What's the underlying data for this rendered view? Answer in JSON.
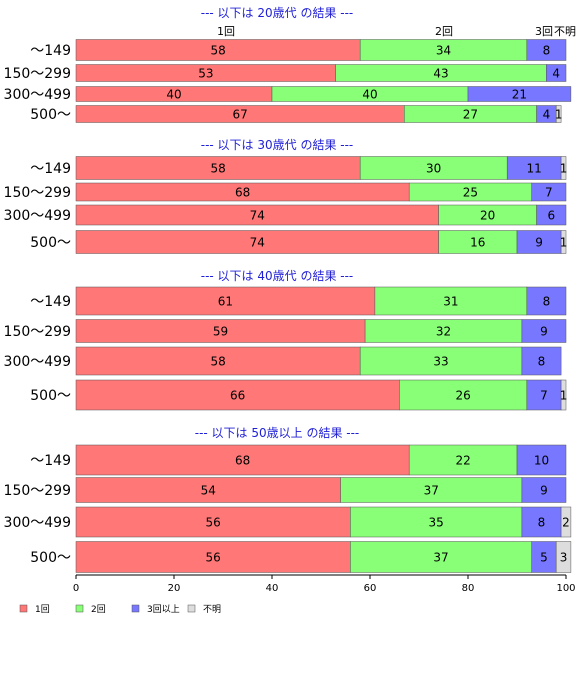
{
  "colors": {
    "one": "#ff7777",
    "two": "#88ff77",
    "three_plus": "#7777ff",
    "unknown": "#dddddd",
    "header": "#1f1fd6",
    "axis": "#000000"
  },
  "top_labels": [
    "1回",
    "2回",
    "3回",
    "不明"
  ],
  "chart_data": {
    "type": "bar",
    "orientation": "horizontal",
    "stacked": true,
    "xlim": [
      0,
      100
    ],
    "x_ticks": [
      0,
      20,
      40,
      60,
      80,
      100
    ],
    "legend": {
      "placement": "bottom-left",
      "entries": [
        "1回",
        "2回",
        "3回以上",
        "不明"
      ]
    },
    "groups": [
      {
        "header": "--- 以下は 20歳代 の結果 ---",
        "categories": [
          "～149",
          "150～299",
          "300～499",
          "500～"
        ],
        "series": [
          {
            "name": "1回",
            "values": [
              58,
              53,
              40,
              67
            ]
          },
          {
            "name": "2回",
            "values": [
              34,
              43,
              40,
              27
            ]
          },
          {
            "name": "3回以上",
            "values": [
              8,
              4,
              21,
              4
            ]
          },
          {
            "name": "不明",
            "values": [
              0,
              0,
              0,
              1
            ]
          }
        ]
      },
      {
        "header": "--- 以下は 30歳代 の結果 ---",
        "categories": [
          "～149",
          "150～299",
          "300～499",
          "500～"
        ],
        "series": [
          {
            "name": "1回",
            "values": [
              58,
              68,
              74,
              74
            ]
          },
          {
            "name": "2回",
            "values": [
              30,
              25,
              20,
              16
            ]
          },
          {
            "name": "3回以上",
            "values": [
              11,
              7,
              6,
              9
            ]
          },
          {
            "name": "不明",
            "values": [
              1,
              0,
              0,
              1
            ]
          }
        ]
      },
      {
        "header": "--- 以下は 40歳代 の結果 ---",
        "categories": [
          "～149",
          "150～299",
          "300～499",
          "500～"
        ],
        "series": [
          {
            "name": "1回",
            "values": [
              61,
              59,
              58,
              66
            ]
          },
          {
            "name": "2回",
            "values": [
              31,
              32,
              33,
              26
            ]
          },
          {
            "name": "3回以上",
            "values": [
              8,
              9,
              8,
              7
            ]
          },
          {
            "name": "不明",
            "values": [
              0,
              0,
              0,
              1
            ]
          }
        ]
      },
      {
        "header": "--- 以下は 50歳以上 の結果 ---",
        "categories": [
          "～149",
          "150～299",
          "300～499",
          "500～"
        ],
        "series": [
          {
            "name": "1回",
            "values": [
              68,
              54,
              56,
              56
            ]
          },
          {
            "name": "2回",
            "values": [
              22,
              37,
              35,
              37
            ]
          },
          {
            "name": "3回以上",
            "values": [
              10,
              9,
              8,
              5
            ]
          },
          {
            "name": "不明",
            "values": [
              0,
              0,
              2,
              3
            ]
          }
        ]
      }
    ]
  }
}
